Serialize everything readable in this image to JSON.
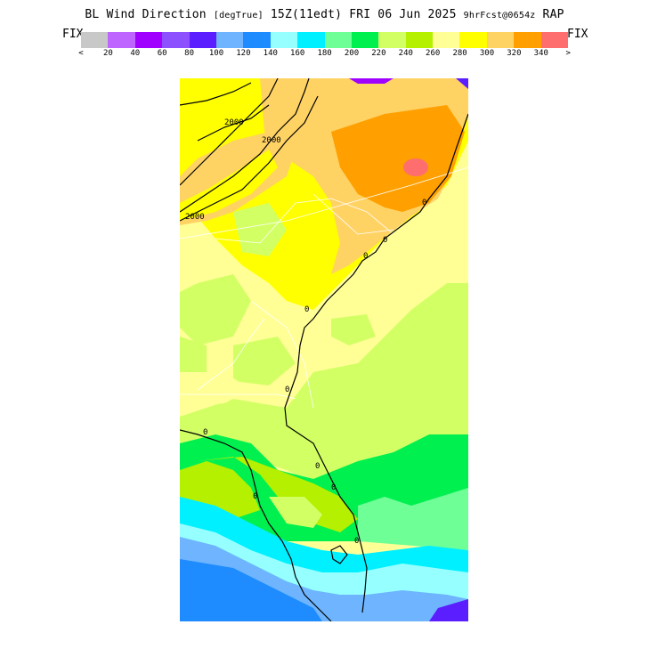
{
  "header": {
    "title_main": "BL Wind Direction",
    "title_units": "[degTrue]",
    "title_time": "15Z(11edt)",
    "title_date": "FRI 06 Jun 2025",
    "title_fcst": "9hrFcst@0654z",
    "title_model": "RAP"
  },
  "legend": {
    "left_label": "FIX",
    "right_label": "FIX",
    "colors": [
      "#c8c8c8",
      "#be64ff",
      "#a000ff",
      "#8c50ff",
      "#5a1eff",
      "#6eb4ff",
      "#1e8cff",
      "#96ffff",
      "#00f0ff",
      "#6eff96",
      "#00f050",
      "#d2ff64",
      "#b4f000",
      "#ffff96",
      "#ffff00",
      "#ffd264",
      "#ffa000",
      "#ff6e6e"
    ],
    "tick_labels": [
      "<",
      "20",
      "40",
      "60",
      "80",
      "100",
      "120",
      "140",
      "160",
      "180",
      "200",
      "220",
      "240",
      "260",
      "280",
      "300",
      "320",
      "340",
      ">"
    ]
  },
  "map": {
    "contour_labels": [
      "2000",
      "2000",
      "2000",
      "0",
      "0",
      "0",
      "0",
      "0",
      "0",
      "0",
      "0",
      "0",
      "0"
    ]
  }
}
